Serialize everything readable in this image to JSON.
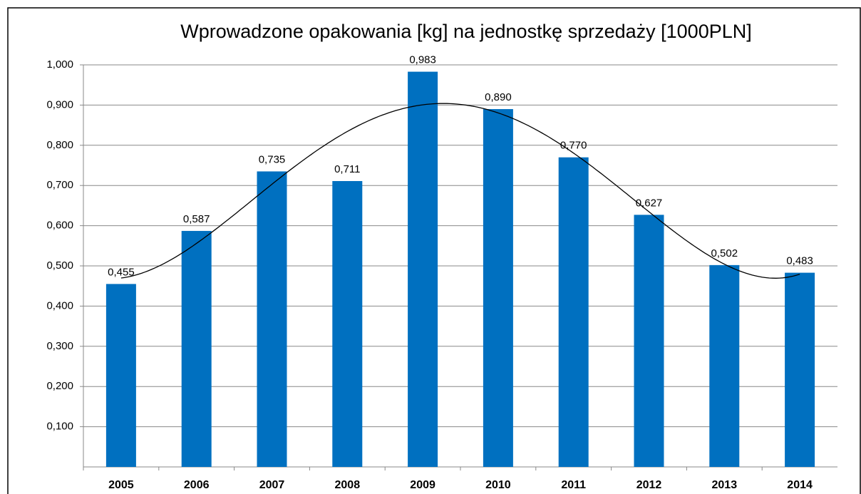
{
  "chart_data": {
    "type": "bar",
    "title": "Wprowadzone opakowania  [kg]  na jednostkę sprzedaży [1000PLN]",
    "categories": [
      "2005",
      "2006",
      "2007",
      "2008",
      "2009",
      "2010",
      "2011",
      "2012",
      "2013",
      "2014"
    ],
    "values": [
      0.455,
      0.587,
      0.735,
      0.711,
      0.983,
      0.89,
      0.77,
      0.627,
      0.502,
      0.483
    ],
    "value_labels": [
      "0,455",
      "0,587",
      "0,735",
      "0,711",
      "0,983",
      "0,890",
      "0,770",
      "0,627",
      "0,502",
      "0,483"
    ],
    "color": "#0070c0",
    "ylim": [
      0,
      1
    ],
    "yticks": [
      {
        "value": 0.1,
        "label": "0,100"
      },
      {
        "value": 0.2,
        "label": "0,200"
      },
      {
        "value": 0.3,
        "label": "0,300"
      },
      {
        "value": 0.4,
        "label": "0,400"
      },
      {
        "value": 0.5,
        "label": "0,500"
      },
      {
        "value": 0.6,
        "label": "0,600"
      },
      {
        "value": 0.7,
        "label": "0,700"
      },
      {
        "value": 0.8,
        "label": "0,800"
      },
      {
        "value": 0.9,
        "label": "0,900"
      },
      {
        "value": 1,
        "label": "1,000"
      }
    ],
    "grid": true,
    "trendline": {
      "type": "polynomial",
      "order": 4,
      "color": "#000000"
    }
  }
}
